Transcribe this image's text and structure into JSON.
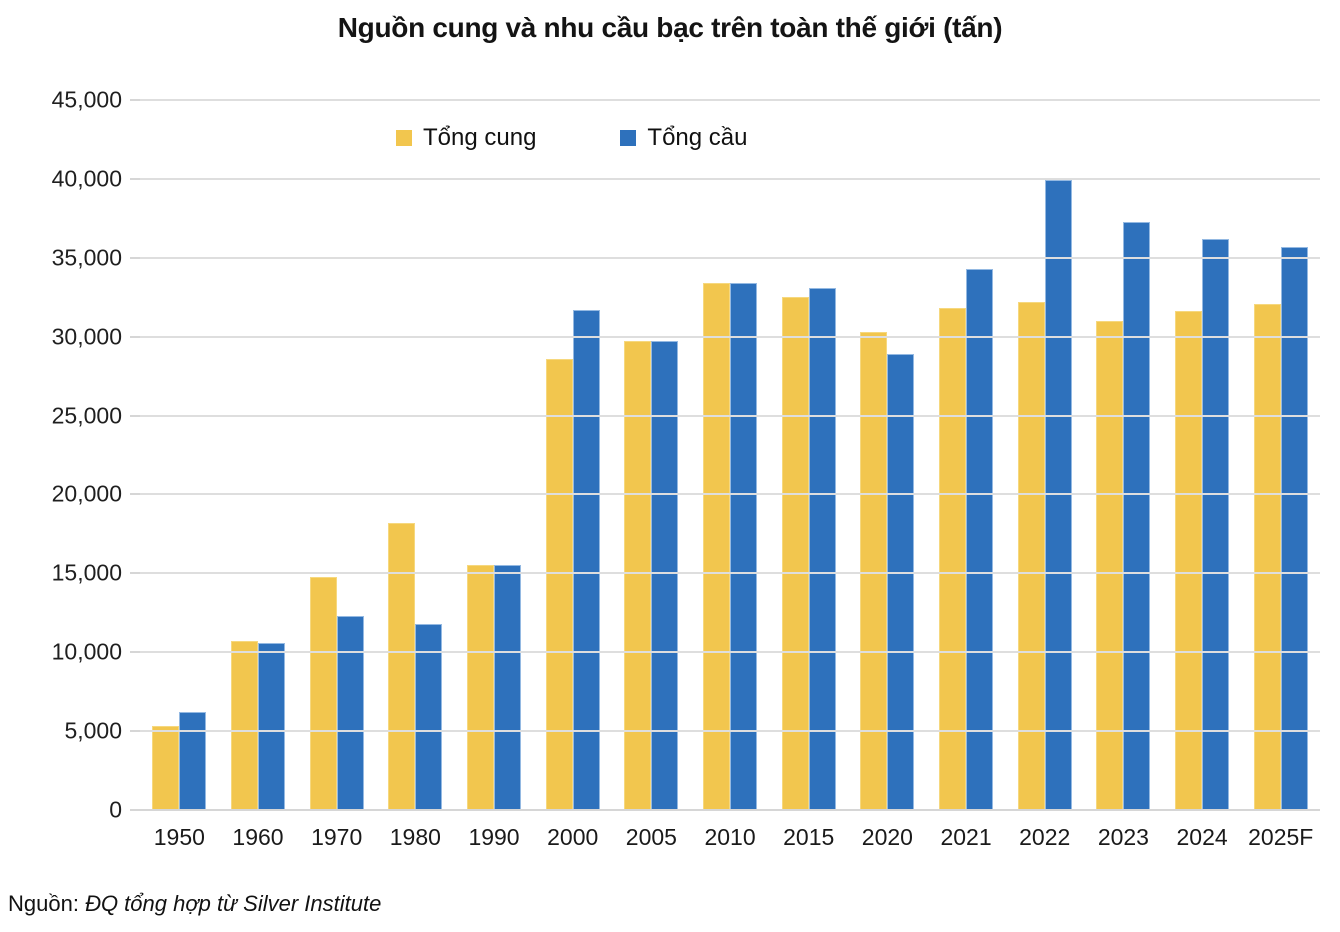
{
  "chart_data": {
    "type": "bar",
    "title": "Nguồn cung và nhu cầu bạc trên toàn thế giới (tấn)",
    "xlabel": "",
    "ylabel": "",
    "ylim": [
      0,
      45000
    ],
    "ytick_step": 5000,
    "grid": true,
    "legend_position": "top-inside",
    "categories": [
      "1950",
      "1960",
      "1970",
      "1980",
      "1990",
      "2000",
      "2005",
      "2010",
      "2015",
      "2020",
      "2021",
      "2022",
      "2023",
      "2024",
      "2025F"
    ],
    "series": [
      {
        "name": "Tổng cung",
        "color": "#F2C64E",
        "border_color": "#F6D87E",
        "values": [
          5300,
          10700,
          14800,
          18200,
          15500,
          28600,
          29700,
          33400,
          32500,
          30300,
          31800,
          32200,
          31000,
          31600,
          32100
        ]
      },
      {
        "name": "Tổng cầu",
        "color": "#2E71BC",
        "border_color": "#94B9E2",
        "values": [
          6200,
          10600,
          12300,
          11800,
          15500,
          31700,
          29700,
          33400,
          33100,
          28900,
          34300,
          39900,
          37300,
          36200,
          35700
        ]
      }
    ],
    "yticks": [
      {
        "value": 0,
        "label": "0"
      },
      {
        "value": 5000,
        "label": "5,000"
      },
      {
        "value": 10000,
        "label": "10,000"
      },
      {
        "value": 15000,
        "label": "15,000"
      },
      {
        "value": 20000,
        "label": "20,000"
      },
      {
        "value": 25000,
        "label": "25,000"
      },
      {
        "value": 30000,
        "label": "30,000"
      },
      {
        "value": 35000,
        "label": "35,000"
      },
      {
        "value": 40000,
        "label": "40,000"
      },
      {
        "value": 45000,
        "label": "45,000"
      }
    ]
  },
  "legend": {
    "supply_label": "Tổng cung",
    "demand_label": "Tổng cầu"
  },
  "source": {
    "prefix": "Nguồn: ",
    "text": "ĐQ tổng hợp từ Silver Institute"
  }
}
